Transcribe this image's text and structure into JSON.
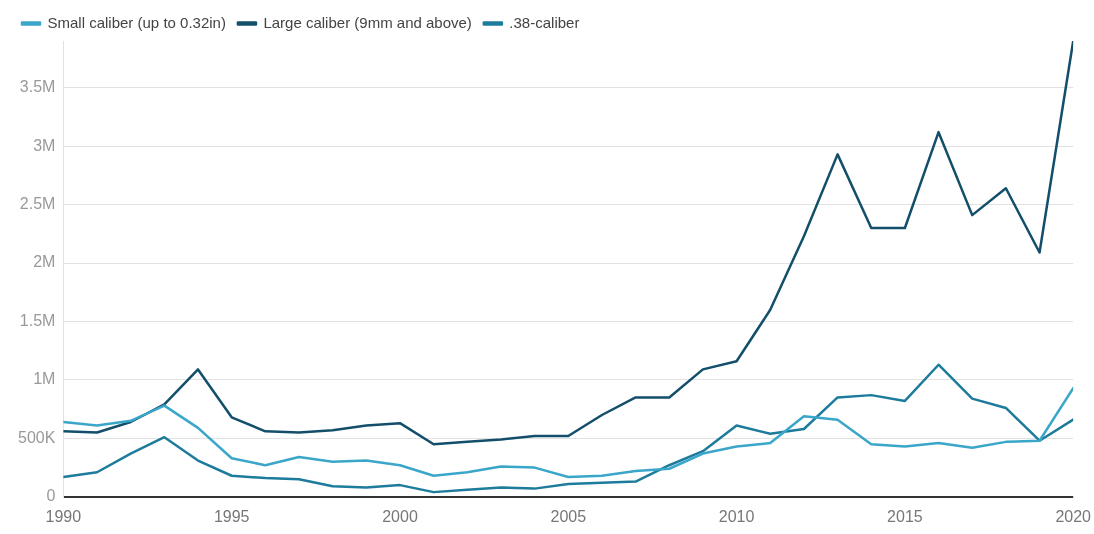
{
  "chart_data": {
    "type": "line",
    "x": [
      1990,
      1991,
      1992,
      1993,
      1994,
      1995,
      1996,
      1997,
      1998,
      1999,
      2000,
      2001,
      2002,
      2003,
      2004,
      2005,
      2006,
      2007,
      2008,
      2009,
      2010,
      2011,
      2012,
      2013,
      2014,
      2015,
      2016,
      2017,
      2018,
      2019,
      2020
    ],
    "series": [
      {
        "name": "Small caliber (up to 0.32in)",
        "color": "#3aa6c9",
        "values": [
          640000,
          610000,
          650000,
          780000,
          590000,
          330000,
          270000,
          340000,
          300000,
          310000,
          270000,
          180000,
          210000,
          260000,
          250000,
          170000,
          180000,
          220000,
          240000,
          370000,
          430000,
          460000,
          690000,
          660000,
          450000,
          430000,
          460000,
          420000,
          470000,
          480000,
          930000
        ]
      },
      {
        "name": "Large caliber (9mm and above)",
        "color": "#134f6b",
        "values": [
          560000,
          550000,
          640000,
          790000,
          1090000,
          680000,
          560000,
          550000,
          570000,
          610000,
          630000,
          450000,
          470000,
          490000,
          520000,
          520000,
          700000,
          850000,
          850000,
          1090000,
          1160000,
          1600000,
          2230000,
          2930000,
          2300000,
          2300000,
          3120000,
          2410000,
          2640000,
          2090000,
          3900000
        ]
      },
      {
        "name": ".38-caliber",
        "color": "#1d7b9c",
        "values": [
          170000,
          210000,
          370000,
          510000,
          310000,
          180000,
          160000,
          150000,
          90000,
          80000,
          100000,
          40000,
          60000,
          80000,
          70000,
          110000,
          120000,
          130000,
          270000,
          390000,
          610000,
          540000,
          580000,
          850000,
          870000,
          820000,
          1130000,
          840000,
          760000,
          480000,
          660000
        ]
      }
    ],
    "xlim": [
      1990,
      2020
    ],
    "xticks": [
      1990,
      1995,
      2000,
      2005,
      2010,
      2015,
      2020
    ],
    "ylim": [
      0,
      3900000
    ],
    "yticks": [
      0,
      {
        "value": 500000,
        "label": "500K"
      },
      {
        "value": 1000000,
        "label": "1M"
      },
      {
        "value": 1500000,
        "label": "1.5M"
      },
      {
        "value": 2000000,
        "label": "2M"
      },
      {
        "value": 2500000,
        "label": "2.5M"
      },
      {
        "value": 3000000,
        "label": "3M"
      },
      {
        "value": 3500000,
        "label": "3.5M"
      }
    ],
    "grid": "y",
    "legend": "top left",
    "marker": "none",
    "line_style": "solid"
  }
}
